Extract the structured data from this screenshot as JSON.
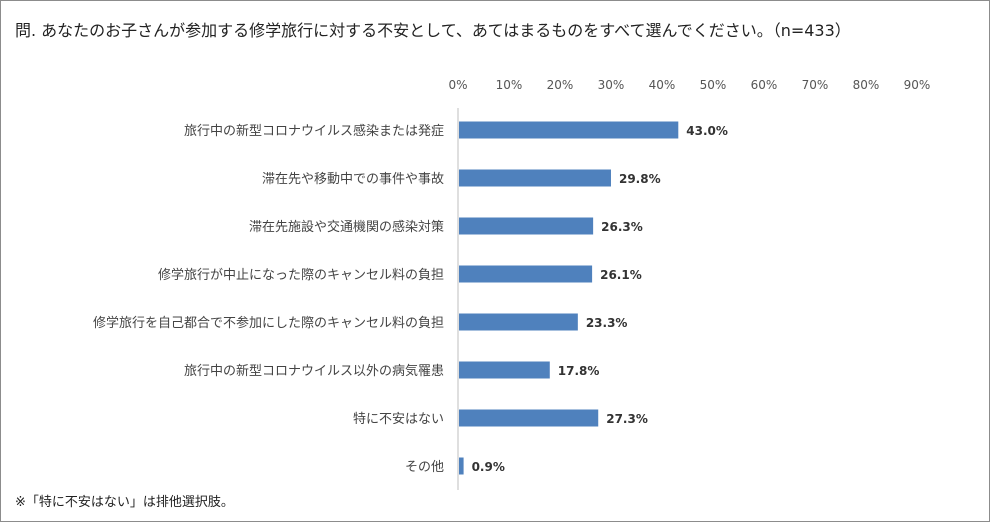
{
  "title": "問. あなたのお子さんが参加する修学旅行に対する不安として、あてはまるものをすべて選んでください。（n=433）",
  "footnote": "※「特に不安はない」は排他選択肢。",
  "chart_data": {
    "type": "bar",
    "orientation": "horizontal",
    "title": "問. あなたのお子さんが参加する修学旅行に対する不安として、あてはまるものをすべて選んでください。（n=433）",
    "xlabel": "",
    "ylabel": "",
    "xlim": [
      0,
      90
    ],
    "tick_labels": [
      "0%",
      "10%",
      "20%",
      "30%",
      "40%",
      "50%",
      "60%",
      "70%",
      "80%",
      "90%"
    ],
    "ticks": [
      0,
      10,
      20,
      30,
      40,
      50,
      60,
      70,
      80,
      90
    ],
    "grid": false,
    "legend": "none",
    "bar_color": "#4f81bd",
    "categories": [
      "旅行中の新型コロナウイルス感染または発症",
      "滞在先や移動中での事件や事故",
      "滞在先施設や交通機関の感染対策",
      "修学旅行が中止になった際のキャンセル料の負担",
      "修学旅行を自己都合で不参加にした際のキャンセル料の負担",
      "旅行中の新型コロナウイルス以外の病気罹患",
      "特に不安はない",
      "その他"
    ],
    "values": [
      43.0,
      29.8,
      26.3,
      26.1,
      23.3,
      17.8,
      27.3,
      0.9
    ],
    "value_labels": [
      "43.0%",
      "29.8%",
      "26.3%",
      "26.1%",
      "23.3%",
      "17.8%",
      "27.3%",
      "0.9%"
    ]
  }
}
